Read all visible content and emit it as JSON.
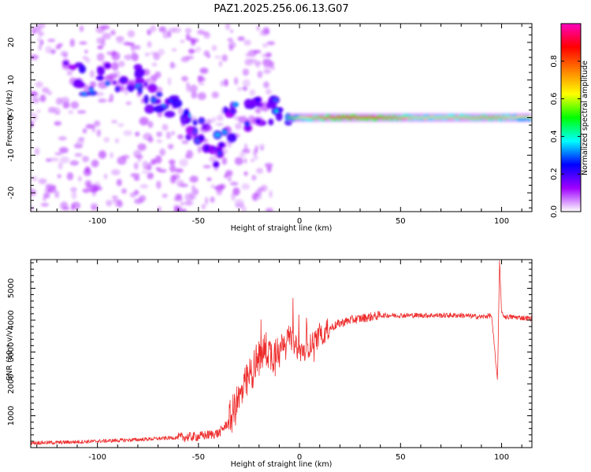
{
  "title": "PAZ1.2025.256.06.13.G07",
  "chart_data": [
    {
      "type": "heatmap",
      "xlabel": "Height of straight line (km)",
      "ylabel": "Frequency (Hz)",
      "xlim": [
        -133,
        115
      ],
      "ylim": [
        -25,
        25
      ],
      "xticks": [
        -100,
        -50,
        0,
        50,
        100
      ],
      "yticks": [
        -20,
        -10,
        0,
        10,
        20
      ],
      "xtick_labels": [
        "-100",
        "-50",
        "0",
        "50",
        "100"
      ],
      "ytick_labels": [
        "-20",
        "-10",
        "0",
        "10",
        "20"
      ],
      "colorbar": {
        "label": "Normalized spectral amplitude",
        "range": [
          0,
          1
        ],
        "ticks": [
          0.0,
          0.2,
          0.4,
          0.6,
          0.8
        ],
        "tick_labels": [
          "0.0",
          "0.2",
          "0.4",
          "0.6",
          "0.8"
        ],
        "colors": [
          "#ffffff",
          "#a000ff",
          "#0000ff",
          "#00ffff",
          "#00ff00",
          "#ffff00",
          "#ff8000",
          "#ff0000",
          "#ff00c0"
        ]
      },
      "features": [
        {
          "x": -115,
          "y": 12,
          "a": 0.3
        },
        {
          "x": -102,
          "y": 9,
          "a": 0.35
        },
        {
          "x": -92,
          "y": 11,
          "a": 0.25
        },
        {
          "x": -80,
          "y": 10,
          "a": 0.3
        },
        {
          "x": -72,
          "y": 5,
          "a": 0.35
        },
        {
          "x": -62,
          "y": 2,
          "a": 0.45
        },
        {
          "x": -55,
          "y": -1,
          "a": 0.35
        },
        {
          "x": -48,
          "y": -5,
          "a": 0.3
        },
        {
          "x": -40,
          "y": -11,
          "a": 0.3
        },
        {
          "x": -35,
          "y": 0,
          "a": 0.35
        },
        {
          "x": -25,
          "y": 1,
          "a": 0.3
        },
        {
          "x": -15,
          "y": 2,
          "a": 0.3
        },
        {
          "x": -5,
          "y": 0.5,
          "a": 0.5
        },
        {
          "x": 0,
          "y": 0,
          "a": 0.6
        },
        {
          "x": 5,
          "y": 0,
          "a": 0.7
        },
        {
          "x": 30,
          "y": 0,
          "a": 0.95
        },
        {
          "x": 60,
          "y": 0,
          "a": 0.65
        },
        {
          "x": 97,
          "y": 0.7,
          "a": 0.75
        },
        {
          "x": 110,
          "y": 0.2,
          "a": 0.6
        }
      ]
    },
    {
      "type": "line",
      "xlabel": "Height of straight line (km)",
      "ylabel": "SNR (10 * v/v)",
      "xlim": [
        -133,
        115
      ],
      "ylim": [
        0,
        5900
      ],
      "xticks": [
        -100,
        -50,
        0,
        50,
        100
      ],
      "yticks": [
        1000,
        2000,
        3000,
        4000,
        5000
      ],
      "xtick_labels": [
        "-100",
        "-50",
        "0",
        "50",
        "100"
      ],
      "ytick_labels": [
        "1000",
        "2000",
        "3000",
        "4000",
        "5000"
      ],
      "color": "#ee2c2c",
      "series": [
        {
          "x": [
            -133,
            -120,
            -100,
            -80,
            -65,
            -50,
            -40,
            -35,
            -30,
            -25,
            -22,
            -20,
            -18,
            -16,
            -14,
            -12,
            -10,
            -8,
            -5,
            -3,
            0,
            5,
            10,
            15,
            20,
            25,
            30,
            35,
            40,
            50,
            60,
            70,
            80,
            90,
            95,
            98,
            99,
            100,
            102,
            105,
            115
          ],
          "y": [
            150,
            160,
            200,
            250,
            300,
            350,
            450,
            800,
            1500,
            2200,
            2600,
            2800,
            3000,
            3100,
            2900,
            3000,
            3200,
            3350,
            3500,
            3300,
            3000,
            3200,
            3500,
            3750,
            3900,
            4000,
            4050,
            4100,
            4150,
            4150,
            4150,
            4150,
            4150,
            4100,
            4150,
            2100,
            5900,
            4200,
            4100,
            4100,
            4050
          ]
        }
      ]
    }
  ]
}
